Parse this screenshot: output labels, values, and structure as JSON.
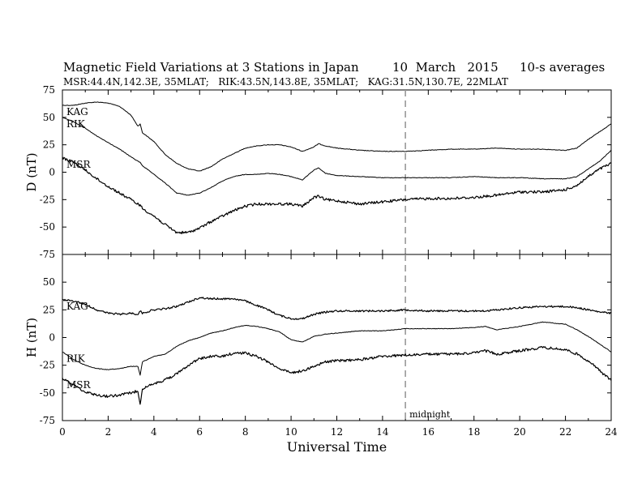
{
  "header": {
    "title_left": "Magnetic Field Variations at 3 Stations in Japan",
    "title_date": "10  March   2015",
    "title_right": "10-s averages",
    "subtitle": "MSR:44.4N,142.3E, 35MLAT;   RIK:43.5N,143.8E, 35MLAT;   KAG:31.5N,130.7E, 22MLAT"
  },
  "chart_data": [
    {
      "type": "line",
      "panel": "top",
      "ylabel": "D (nT)",
      "ylim": [
        -75,
        75
      ],
      "yticks": [
        -75,
        -50,
        -25,
        0,
        25,
        50,
        75
      ],
      "xlim": [
        0,
        24
      ],
      "x": [
        0,
        0.5,
        1,
        1.5,
        2,
        2.5,
        3,
        3.3,
        3.4,
        3.5,
        4,
        4.5,
        5,
        5.5,
        6,
        6.5,
        7,
        7.5,
        8,
        8.5,
        9,
        9.5,
        10,
        10.5,
        11,
        11.2,
        11.5,
        12,
        13,
        14,
        15,
        16,
        17,
        18,
        19,
        20,
        21,
        22,
        22.5,
        23,
        23.5,
        24
      ],
      "series": [
        {
          "name": "KAG",
          "values": [
            61,
            61,
            63,
            64,
            63,
            60,
            52,
            42,
            44,
            36,
            28,
            16,
            8,
            3,
            1,
            5,
            12,
            17,
            22,
            24,
            25,
            25,
            23,
            19,
            23,
            26,
            24,
            22,
            20,
            19,
            19,
            20,
            21,
            21,
            22,
            21,
            21,
            20,
            22,
            30,
            37,
            44
          ]
        },
        {
          "name": "RIK",
          "values": [
            50,
            46,
            40,
            33,
            27,
            21,
            14,
            10,
            9,
            6,
            -2,
            -10,
            -19,
            -21,
            -19,
            -14,
            -8,
            -4,
            -2,
            -2,
            -1,
            -2,
            -4,
            -7,
            2,
            4,
            -1,
            -3,
            -4,
            -5,
            -5,
            -5,
            -5,
            -4,
            -5,
            -5,
            -6,
            -6,
            -4,
            3,
            10,
            20
          ]
        },
        {
          "name": "MSR",
          "values": [
            13,
            9,
            2,
            -6,
            -13,
            -19,
            -25,
            -29,
            -30,
            -33,
            -40,
            -48,
            -55,
            -55,
            -51,
            -45,
            -40,
            -35,
            -31,
            -29,
            -29,
            -29,
            -29,
            -31,
            -23,
            -22,
            -25,
            -26,
            -29,
            -27,
            -25,
            -24,
            -24,
            -23,
            -21,
            -18,
            -18,
            -16,
            -12,
            -4,
            3,
            8
          ]
        }
      ]
    },
    {
      "type": "line",
      "panel": "bottom",
      "ylabel": "H (nT)",
      "xlabel": "Universal Time",
      "ylim": [
        -75,
        75
      ],
      "yticks": [
        -75,
        -50,
        -25,
        0,
        25,
        50
      ],
      "xlim": [
        0,
        24
      ],
      "xticks": [
        0,
        2,
        4,
        6,
        8,
        10,
        12,
        14,
        16,
        18,
        20,
        22,
        24
      ],
      "x": [
        0,
        0.5,
        1,
        1.5,
        2,
        2.5,
        3,
        3.3,
        3.4,
        3.5,
        4,
        4.5,
        5,
        5.5,
        6,
        6.5,
        7,
        7.5,
        8,
        8.5,
        9,
        9.5,
        10,
        10.5,
        11,
        11.5,
        12,
        13,
        14,
        15,
        16,
        17,
        18,
        18.5,
        19,
        20,
        21,
        22,
        22.5,
        23,
        23.5,
        24
      ],
      "series": [
        {
          "name": "KAG",
          "values": [
            34,
            33,
            30,
            25,
            22,
            21,
            22,
            21,
            24,
            22,
            25,
            26,
            28,
            32,
            36,
            35,
            35,
            35,
            33,
            29,
            25,
            20,
            17,
            17,
            21,
            23,
            24,
            24,
            24,
            25,
            24,
            24,
            24,
            24,
            25,
            27,
            28,
            28,
            27,
            25,
            23,
            22
          ]
        },
        {
          "name": "RIK",
          "values": [
            -13,
            -20,
            -25,
            -28,
            -29,
            -28,
            -26,
            -26,
            -34,
            -22,
            -17,
            -15,
            -8,
            -3,
            0,
            4,
            6,
            9,
            11,
            10,
            8,
            5,
            -2,
            -4,
            1,
            3,
            4,
            6,
            6,
            8,
            8,
            8,
            9,
            10,
            7,
            10,
            14,
            12,
            7,
            1,
            -6,
            -13
          ]
        },
        {
          "name": "MSR",
          "values": [
            -37,
            -43,
            -49,
            -52,
            -53,
            -52,
            -50,
            -48,
            -60,
            -46,
            -42,
            -38,
            -33,
            -25,
            -19,
            -17,
            -17,
            -14,
            -14,
            -17,
            -22,
            -28,
            -32,
            -30,
            -26,
            -22,
            -21,
            -20,
            -17,
            -16,
            -15,
            -15,
            -14,
            -12,
            -15,
            -12,
            -9,
            -11,
            -15,
            -21,
            -30,
            -39
          ]
        }
      ]
    }
  ],
  "annotations": {
    "midnight_label": "midnight",
    "midnight_x": 15
  }
}
